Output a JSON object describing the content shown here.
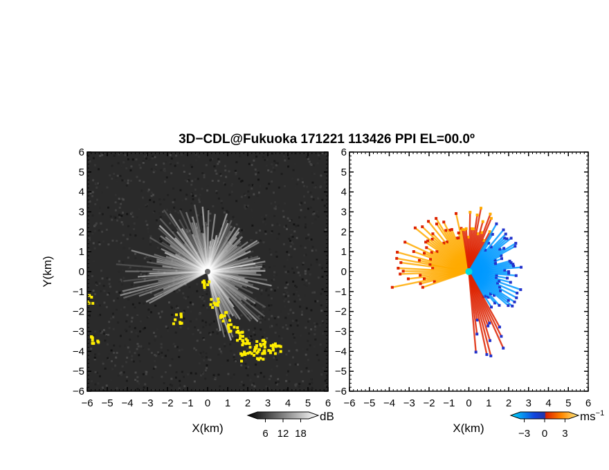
{
  "title": "3D−CDL@Fukuoka 171221 113426 PPI EL=00.0º",
  "chart_data": [
    {
      "type": "heatmap",
      "panel": "reflectivity",
      "xlabel": "X(km)",
      "ylabel": "Y(km)",
      "xlim": [
        -6,
        6
      ],
      "ylim": [
        -6,
        6
      ],
      "xticks": [
        "−6",
        "−5",
        "−4",
        "−3",
        "−2",
        "−1",
        "0",
        "1",
        "2",
        "3",
        "4",
        "5",
        "6"
      ],
      "yticks": [
        "6",
        "5",
        "4",
        "3",
        "2",
        "1",
        "0",
        "−1",
        "−2",
        "−3",
        "−4",
        "−5",
        "−6"
      ],
      "colorbar": {
        "unit": "dB",
        "ticks": [
          "6",
          "12",
          "18"
        ],
        "tick_values": [
          6,
          12,
          18
        ],
        "range": [
          0,
          24
        ]
      },
      "background_color": "#2a2a2a",
      "highlight_color": "#ffee00",
      "ray_color": "#ffffff",
      "grid": false
    },
    {
      "type": "heatmap",
      "panel": "doppler_velocity",
      "xlabel": "X(km)",
      "xlim": [
        -6,
        6
      ],
      "ylim": [
        -6,
        6
      ],
      "xticks": [
        "−6",
        "−5",
        "−4",
        "−3",
        "−2",
        "−1",
        "0",
        "1",
        "2",
        "3",
        "4",
        "5",
        "6"
      ],
      "yticks": [
        "6",
        "5",
        "4",
        "3",
        "2",
        "1",
        "0",
        "−1",
        "−2",
        "−3",
        "−4",
        "−5",
        "−6"
      ],
      "colorbar": {
        "unit": "ms",
        "unit_exponent": "−1",
        "ticks": [
          "−3",
          "0",
          "3"
        ],
        "tick_values": [
          -3,
          0,
          3
        ],
        "range": [
          -5,
          5
        ]
      },
      "colors": {
        "negative": "#0099ff",
        "negative_strong": "#2233cc",
        "positive": "#ffaa00",
        "positive_strong": "#dd2200",
        "center": "#00dddd"
      },
      "grid": false
    }
  ]
}
